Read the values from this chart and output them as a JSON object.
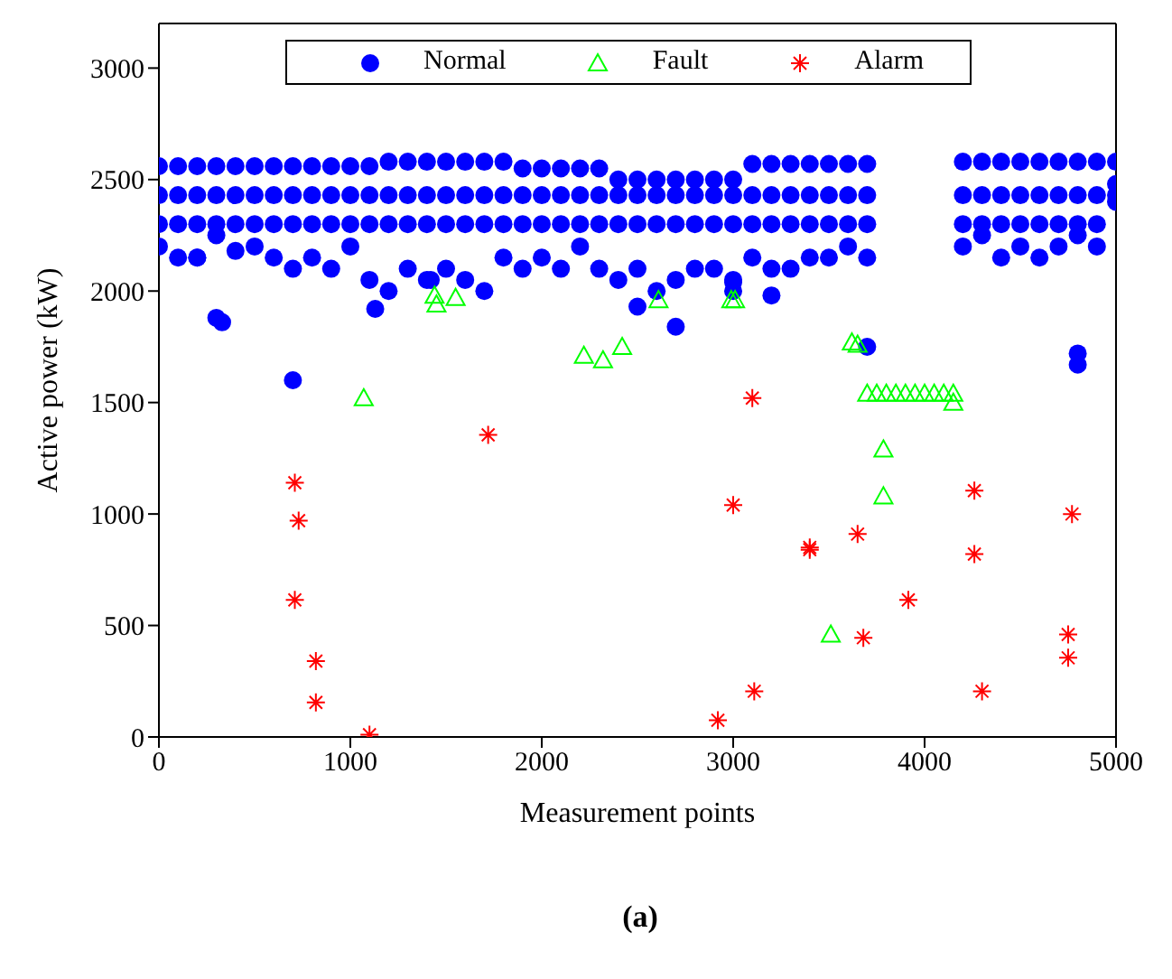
{
  "chart_data": {
    "type": "scatter",
    "xlabel": "Measurement points",
    "ylabel": "Active power (kW)",
    "xlim": [
      0,
      5000
    ],
    "xticks": [
      0,
      1000,
      2000,
      3000,
      4000,
      5000
    ],
    "ylim": [
      0,
      3200
    ],
    "yticks": [
      0,
      500,
      1000,
      1500,
      2000,
      2500,
      3000
    ],
    "grid": false,
    "legend": "top",
    "annotations": [
      "(a)"
    ],
    "series": [
      {
        "name": "Normal",
        "color": "#0000ff",
        "marker": "circle",
        "x": [
          0,
          0,
          0,
          0,
          100,
          100,
          100,
          100,
          200,
          200,
          200,
          200,
          300,
          300,
          300,
          300,
          400,
          400,
          400,
          400,
          500,
          500,
          500,
          500,
          600,
          600,
          600,
          600,
          700,
          700,
          700,
          700,
          800,
          800,
          800,
          800,
          900,
          900,
          900,
          900,
          1000,
          1000,
          1000,
          1000,
          1100,
          1100,
          1100,
          1100,
          1200,
          1200,
          1200,
          1200,
          1300,
          1300,
          1300,
          1300,
          1400,
          1400,
          1400,
          1400,
          1500,
          1500,
          1500,
          1500,
          1600,
          1600,
          1600,
          1600,
          1700,
          1700,
          1700,
          1700,
          1800,
          1800,
          1800,
          1800,
          1900,
          1900,
          1900,
          1900,
          2000,
          2000,
          2000,
          2000,
          2100,
          2100,
          2100,
          2100,
          2200,
          2200,
          2200,
          2200,
          2300,
          2300,
          2300,
          2300,
          2400,
          2400,
          2400,
          2400,
          2500,
          2500,
          2500,
          2500,
          2600,
          2600,
          2600,
          2600,
          2700,
          2700,
          2700,
          2700,
          2800,
          2800,
          2800,
          2800,
          2900,
          2900,
          2900,
          2900,
          3000,
          3000,
          3000,
          3000,
          3100,
          3100,
          3100,
          3100,
          3200,
          3200,
          3200,
          3200,
          3300,
          3300,
          3300,
          3300,
          3400,
          3400,
          3400,
          3400,
          3500,
          3500,
          3500,
          3500,
          3600,
          3600,
          3600,
          3600,
          3700,
          3700,
          3700,
          3700,
          4200,
          4200,
          4200,
          4200,
          4300,
          4300,
          4300,
          4300,
          4400,
          4400,
          4400,
          4400,
          4500,
          4500,
          4500,
          4500,
          4600,
          4600,
          4600,
          4600,
          4700,
          4700,
          4700,
          4700,
          4800,
          4800,
          4800,
          4800,
          4900,
          4900,
          4900,
          4900,
          5000,
          5000,
          5000,
          5000,
          300,
          330,
          700,
          1130,
          2500,
          2700,
          3000,
          3000,
          3200,
          3700,
          4800,
          4800,
          200,
          1420
        ],
        "values": [
          2560,
          2430,
          2300,
          2200,
          2560,
          2430,
          2300,
          2150,
          2560,
          2430,
          2300,
          2150,
          2560,
          2430,
          2300,
          2250,
          2560,
          2430,
          2300,
          2180,
          2560,
          2430,
          2300,
          2200,
          2560,
          2430,
          2300,
          2150,
          2560,
          2430,
          2300,
          2100,
          2560,
          2430,
          2300,
          2150,
          2560,
          2430,
          2300,
          2100,
          2560,
          2430,
          2300,
          2200,
          2560,
          2430,
          2300,
          2050,
          2580,
          2430,
          2300,
          2000,
          2580,
          2430,
          2300,
          2100,
          2580,
          2430,
          2300,
          2050,
          2580,
          2430,
          2300,
          2100,
          2580,
          2430,
          2300,
          2050,
          2580,
          2430,
          2300,
          2000,
          2580,
          2430,
          2300,
          2150,
          2550,
          2430,
          2300,
          2100,
          2550,
          2430,
          2300,
          2150,
          2550,
          2430,
          2300,
          2100,
          2550,
          2430,
          2300,
          2200,
          2550,
          2430,
          2300,
          2100,
          2500,
          2430,
          2300,
          2050,
          2500,
          2430,
          2300,
          2100,
          2500,
          2430,
          2300,
          2000,
          2500,
          2430,
          2300,
          2050,
          2500,
          2430,
          2300,
          2100,
          2500,
          2430,
          2300,
          2100,
          2500,
          2430,
          2300,
          2050,
          2570,
          2430,
          2300,
          2150,
          2570,
          2430,
          2300,
          2100,
          2570,
          2430,
          2300,
          2100,
          2570,
          2430,
          2300,
          2150,
          2570,
          2430,
          2300,
          2150,
          2570,
          2430,
          2300,
          2200,
          2570,
          2430,
          2300,
          2150,
          2580,
          2430,
          2300,
          2200,
          2580,
          2430,
          2300,
          2250,
          2580,
          2430,
          2300,
          2150,
          2580,
          2430,
          2300,
          2200,
          2580,
          2430,
          2300,
          2150,
          2580,
          2430,
          2300,
          2200,
          2580,
          2430,
          2300,
          2250,
          2580,
          2430,
          2300,
          2200,
          2580,
          2480,
          2430,
          2400,
          1880,
          1860,
          1600,
          1920,
          1930,
          1840,
          2040,
          2000,
          1980,
          1750,
          1720,
          1670,
          2150,
          2050
        ]
      },
      {
        "name": "Fault",
        "color": "#00ff00",
        "marker": "triangle",
        "x": [
          1070,
          1440,
          1450,
          1550,
          2220,
          2320,
          2420,
          2610,
          2990,
          3010,
          3510,
          3620,
          3650,
          3785,
          3785,
          3700,
          3750,
          3800,
          3850,
          3900,
          3950,
          4000,
          4050,
          4100,
          4150,
          4150
        ],
        "values": [
          1520,
          1980,
          1940,
          1970,
          1710,
          1690,
          1750,
          1960,
          1960,
          1960,
          460,
          1770,
          1760,
          1290,
          1080,
          1540,
          1540,
          1540,
          1540,
          1540,
          1540,
          1540,
          1540,
          1540,
          1540,
          1500
        ]
      },
      {
        "name": "Alarm",
        "color": "#ff0000",
        "marker": "cross",
        "x": [
          710,
          730,
          710,
          820,
          820,
          1100,
          1720,
          3100,
          3000,
          3400,
          3400,
          3650,
          4260,
          4770,
          4260,
          3915,
          3680,
          4750,
          4750,
          3110,
          4300,
          2920
        ],
        "values": [
          1140,
          970,
          615,
          340,
          155,
          10,
          1355,
          1520,
          1040,
          850,
          840,
          910,
          1105,
          1000,
          820,
          615,
          445,
          460,
          355,
          205,
          205,
          75
        ]
      }
    ]
  }
}
